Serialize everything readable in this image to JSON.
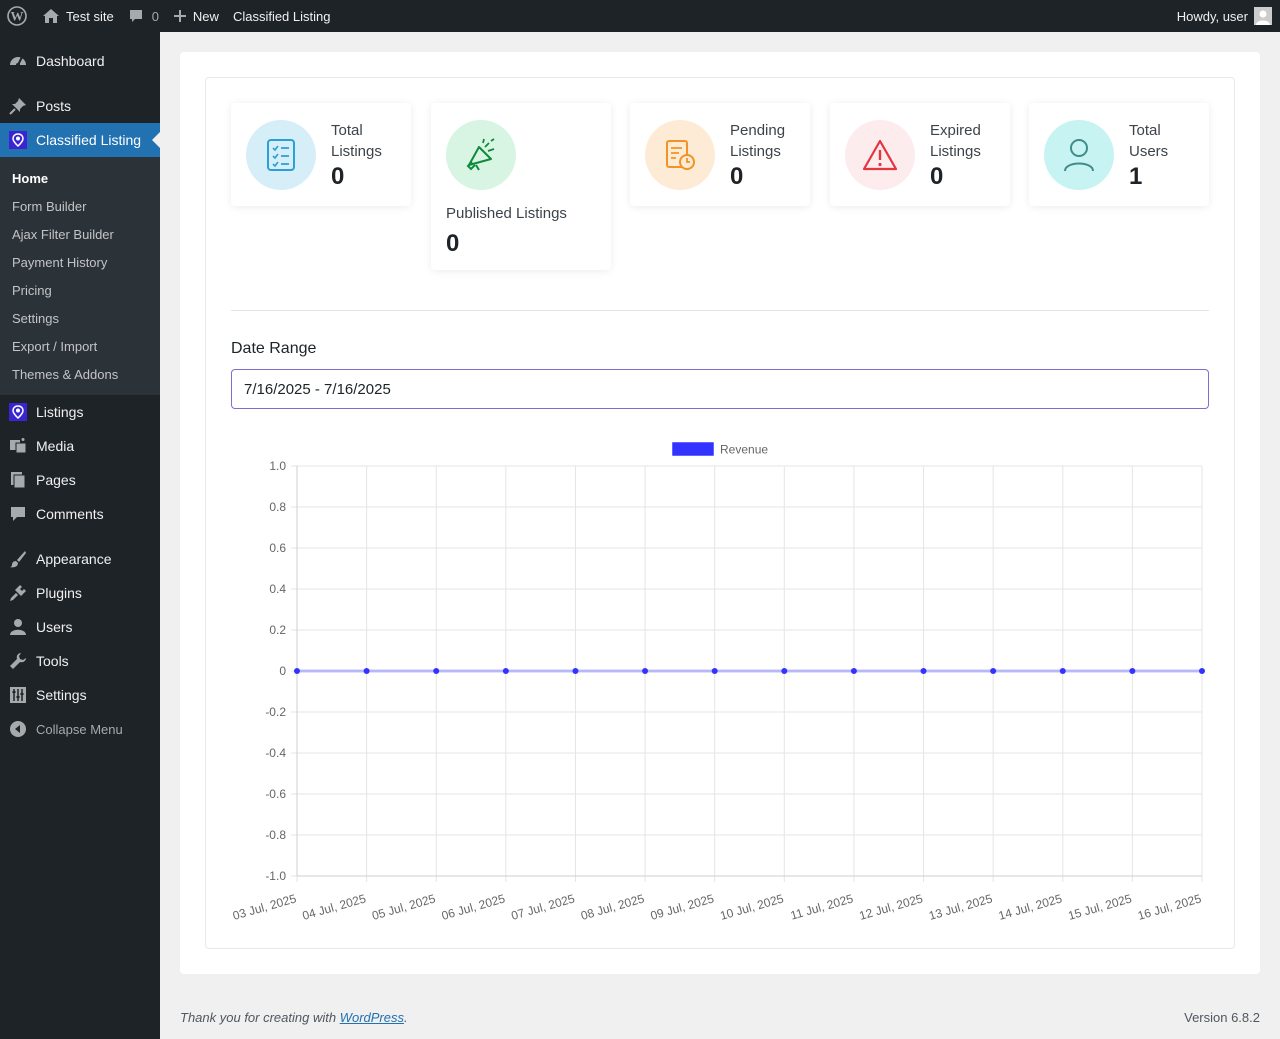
{
  "admin_bar": {
    "site_name": "Test site",
    "comments_count": "0",
    "new_label": "New",
    "plugin_label": "Classified Listing",
    "greeting": "Howdy, user"
  },
  "sidebar": {
    "items": [
      {
        "label": "Dashboard",
        "icon": "dashboard-icon"
      },
      {
        "label": "Posts",
        "icon": "pin-icon"
      },
      {
        "label": "Classified Listing",
        "icon": "classified-icon"
      },
      {
        "label": "Listings",
        "icon": "listings-icon"
      },
      {
        "label": "Media",
        "icon": "media-icon"
      },
      {
        "label": "Pages",
        "icon": "pages-icon"
      },
      {
        "label": "Comments",
        "icon": "comment-icon"
      },
      {
        "label": "Appearance",
        "icon": "brush-icon"
      },
      {
        "label": "Plugins",
        "icon": "plug-icon"
      },
      {
        "label": "Users",
        "icon": "user-icon"
      },
      {
        "label": "Tools",
        "icon": "wrench-icon"
      },
      {
        "label": "Settings",
        "icon": "sliders-icon"
      }
    ],
    "submenu": [
      "Home",
      "Form Builder",
      "Ajax Filter Builder",
      "Payment History",
      "Pricing",
      "Settings",
      "Export / Import",
      "Themes & Addons"
    ],
    "collapse_label": "Collapse Menu"
  },
  "stats": {
    "total_listings": {
      "label": "Total Listings",
      "value": "0",
      "color": "#2aa0d4",
      "bg": "#d6eef8"
    },
    "published_listings": {
      "label": "Published Listings",
      "value": "0",
      "color": "#0f8a3c",
      "bg": "#d8f4e3"
    },
    "pending_listings": {
      "label": "Pending Listings",
      "value": "0",
      "color": "#f29325",
      "bg": "#fdebd6"
    },
    "expired_listings": {
      "label": "Expired Listings",
      "value": "0",
      "color": "#e5363f",
      "bg": "#fdecee"
    },
    "total_users": {
      "label": "Total Users",
      "value": "1",
      "color": "#3f8d8a",
      "bg": "#c8f3f3"
    }
  },
  "date_range": {
    "label": "Date Range",
    "value": "7/16/2025 - 7/16/2025"
  },
  "chart_data": {
    "type": "line",
    "categories": [
      "03 Jul, 2025",
      "04 Jul, 2025",
      "05 Jul, 2025",
      "06 Jul, 2025",
      "07 Jul, 2025",
      "08 Jul, 2025",
      "09 Jul, 2025",
      "10 Jul, 2025",
      "11 Jul, 2025",
      "12 Jul, 2025",
      "13 Jul, 2025",
      "14 Jul, 2025",
      "15 Jul, 2025",
      "16 Jul, 2025"
    ],
    "series": [
      {
        "name": "Revenue",
        "values": [
          0,
          0,
          0,
          0,
          0,
          0,
          0,
          0,
          0,
          0,
          0,
          0,
          0,
          0
        ],
        "color": "#3333ff"
      }
    ],
    "yticks": [
      "1.0",
      "0.8",
      "0.6",
      "0.4",
      "0.2",
      "0",
      "-0.2",
      "-0.4",
      "-0.6",
      "-0.8",
      "-1.0"
    ],
    "ylim": [
      -1,
      1
    ],
    "grid": true,
    "legend": "top-center"
  },
  "footer": {
    "thanks_prefix": "Thank you for creating with ",
    "thanks_link": "WordPress",
    "thanks_suffix": ".",
    "version": "Version 6.8.2"
  }
}
